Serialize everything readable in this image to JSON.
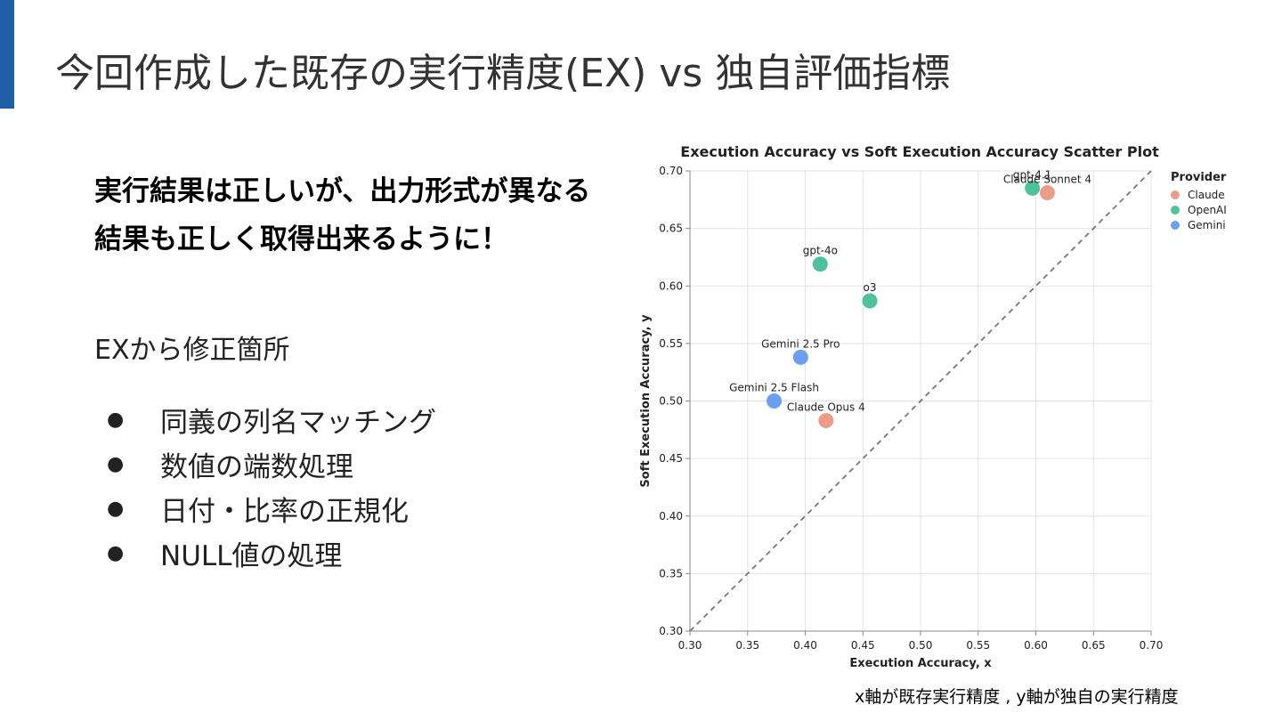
{
  "slide": {
    "title": "今回作成した既存の実行精度(EX) vs 独自評価指標",
    "headline": "実行結果は正しいが、出力形式が異なる結果も正しく取得出来るように！",
    "section_label": "EXから修正箇所",
    "bullets": [
      "同義の列名マッチング",
      "数値の端数処理",
      "日付・比率の正規化",
      "NULL値の処理"
    ],
    "bullet_symbol": "●",
    "caption": "x軸が既存実行精度 , y軸が独自の実行精度",
    "accent_color": "#1f5fa8"
  },
  "chart_data": {
    "type": "scatter",
    "title": "Execution Accuracy vs Soft Execution Accuracy Scatter Plot",
    "xlabel": "Execution Accuracy, x",
    "ylabel": "Soft Execution Accuracy, y",
    "xlim": [
      0.3,
      0.7
    ],
    "ylim": [
      0.3,
      0.7
    ],
    "xticks": [
      "0.30",
      "0.35",
      "0.40",
      "0.45",
      "0.50",
      "0.55",
      "0.60",
      "0.65",
      "0.70"
    ],
    "yticks": [
      "0.30",
      "0.35",
      "0.40",
      "0.45",
      "0.50",
      "0.55",
      "0.60",
      "0.65",
      "0.70"
    ],
    "grid": true,
    "reference_line": "y = x",
    "legend": {
      "title": "Provider",
      "placement": "right",
      "items": [
        {
          "name": "Claude",
          "color": "#e8937a"
        },
        {
          "name": "OpenAI",
          "color": "#3dba92"
        },
        {
          "name": "Gemini",
          "color": "#5b95f0"
        }
      ]
    },
    "points": [
      {
        "label": "gpt-4.1",
        "provider": "OpenAI",
        "x": 0.597,
        "y": 0.685
      },
      {
        "label": "Claude Sonnet 4",
        "provider": "Claude",
        "x": 0.61,
        "y": 0.681
      },
      {
        "label": "gpt-4o",
        "provider": "OpenAI",
        "x": 0.413,
        "y": 0.619
      },
      {
        "label": "o3",
        "provider": "OpenAI",
        "x": 0.456,
        "y": 0.587
      },
      {
        "label": "Gemini 2.5 Pro",
        "provider": "Gemini",
        "x": 0.396,
        "y": 0.538
      },
      {
        "label": "Gemini 2.5 Flash",
        "provider": "Gemini",
        "x": 0.373,
        "y": 0.5
      },
      {
        "label": "Claude Opus 4",
        "provider": "Claude",
        "x": 0.418,
        "y": 0.483
      }
    ]
  }
}
